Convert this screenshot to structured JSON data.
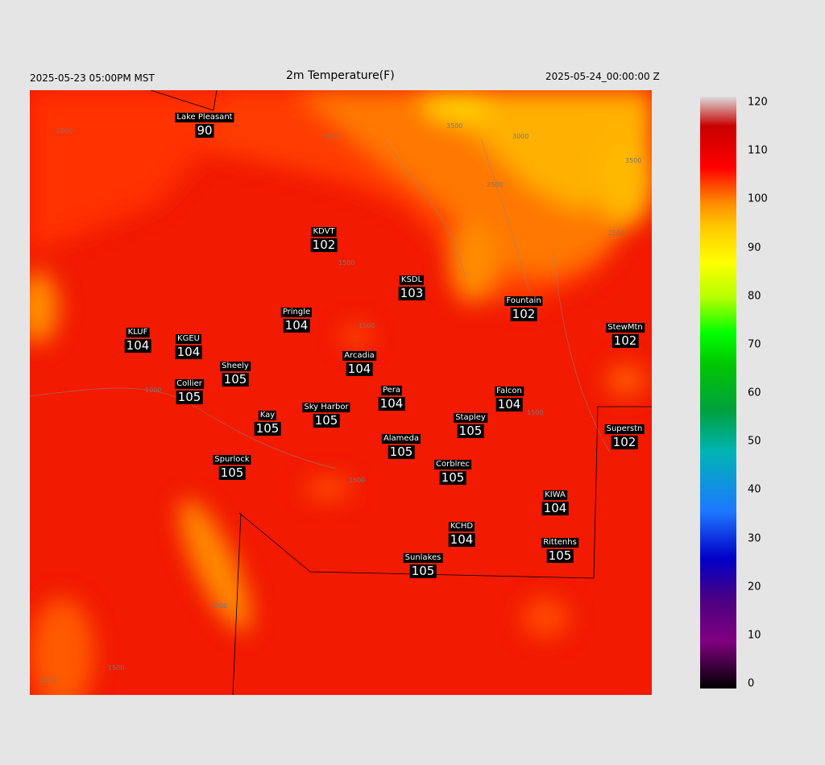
{
  "header": {
    "valid_local": "2025-05-23 05:00PM MST",
    "title": "2m Temperature(F)",
    "valid_utc": "2025-05-24_00:00:00 Z"
  },
  "stations": [
    {
      "name": "Lake Pleasant",
      "value": 90
    },
    {
      "name": "KDVT",
      "value": 102
    },
    {
      "name": "KSDL",
      "value": 103
    },
    {
      "name": "Fountain",
      "value": 102
    },
    {
      "name": "Pringle",
      "value": 104
    },
    {
      "name": "StewMtn",
      "value": 102
    },
    {
      "name": "KLUF",
      "value": 104
    },
    {
      "name": "KGEU",
      "value": 104
    },
    {
      "name": "Arcadia",
      "value": 104
    },
    {
      "name": "Sheely",
      "value": 105
    },
    {
      "name": "Collier",
      "value": 105
    },
    {
      "name": "Pera",
      "value": 104
    },
    {
      "name": "Falcon",
      "value": 104
    },
    {
      "name": "Sky Harbor",
      "value": 105
    },
    {
      "name": "Kay",
      "value": 105
    },
    {
      "name": "Stapley",
      "value": 105
    },
    {
      "name": "Superstn",
      "value": 102
    },
    {
      "name": "Alameda",
      "value": 105
    },
    {
      "name": "Spurlock",
      "value": 105
    },
    {
      "name": "Corblrec",
      "value": 105
    },
    {
      "name": "KIWA",
      "value": 104
    },
    {
      "name": "KCHD",
      "value": 104
    },
    {
      "name": "Rittenhs",
      "value": 105
    },
    {
      "name": "Sunlakes",
      "value": 105
    }
  ],
  "contour_labels": [
    "3500",
    "3000",
    "2500",
    "3500",
    "2500",
    "2000",
    "2500",
    "1500",
    "1500",
    "1000",
    "1500",
    "1500",
    "1500",
    "1500",
    "1500"
  ],
  "colorbar": {
    "range": [
      0,
      120
    ],
    "ticks": [
      0,
      10,
      20,
      30,
      40,
      50,
      60,
      70,
      80,
      90,
      100,
      110,
      120
    ]
  }
}
